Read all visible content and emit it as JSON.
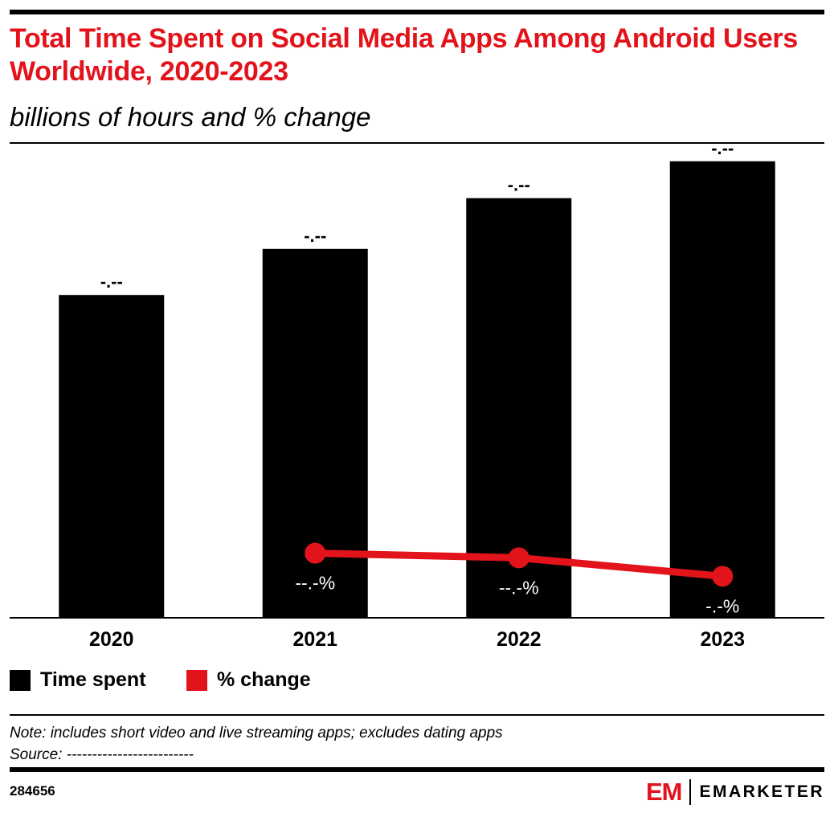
{
  "header": {
    "title": "Total Time Spent on Social Media Apps Among Android Users Worldwide, 2020-2023",
    "subtitle": "billions of hours and % change"
  },
  "legend": {
    "items": [
      {
        "label": "Time spent",
        "color": "#000000"
      },
      {
        "label": "% change",
        "color": "#e3131b"
      }
    ]
  },
  "footer": {
    "note": "Note: includes short video and live streaming apps; excludes dating apps",
    "source": "Source: -------------------------",
    "chart_id": "284656",
    "logo_text": "EMARKETER",
    "logo_mark": "EM"
  },
  "chart_data": {
    "type": "bar",
    "categories": [
      "2020",
      "2021",
      "2022",
      "2023"
    ],
    "series": [
      {
        "name": "Time spent",
        "type": "bar",
        "color": "#000000",
        "values": [
          0.7,
          0.8,
          0.91,
          0.99
        ],
        "labels": [
          "-.--",
          "-.--",
          "-.--",
          "-.--"
        ]
      },
      {
        "name": "% change",
        "type": "line",
        "color": "#e3131b",
        "values": [
          null,
          0.14,
          0.13,
          0.09
        ],
        "labels": [
          null,
          "--.-%",
          "--.-%",
          "-.-%"
        ]
      }
    ],
    "ylim": [
      0,
      1
    ],
    "grid": false,
    "legend_position": "bottom-left"
  }
}
